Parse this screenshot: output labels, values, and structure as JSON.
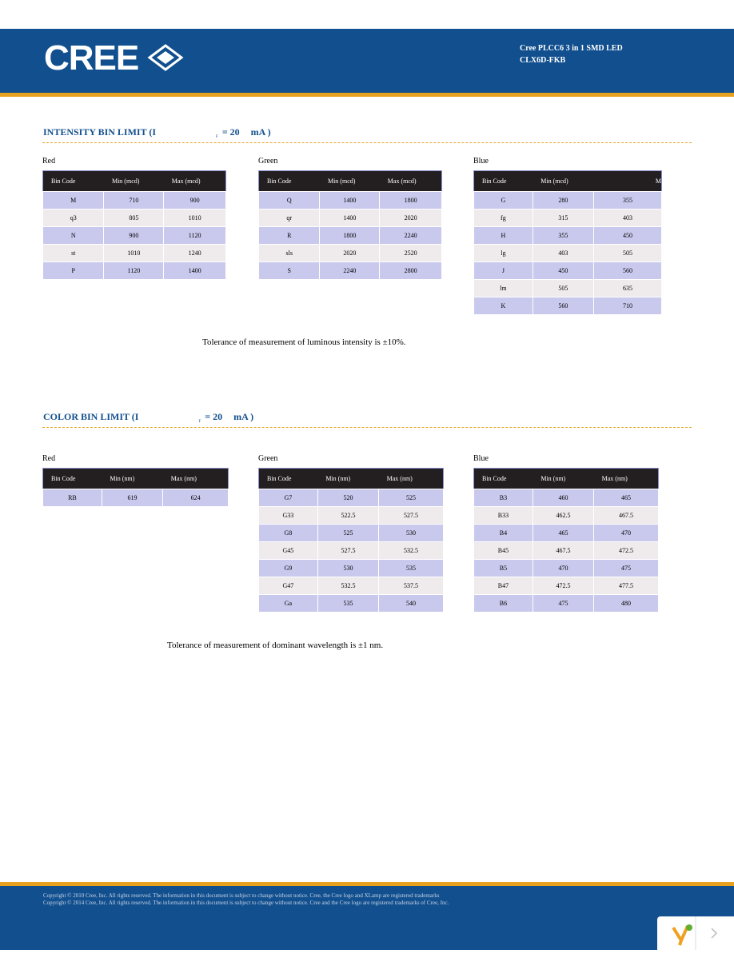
{
  "header": {
    "logo": "CREE",
    "product": "Cree PLCC6 3 in 1 SMD LED",
    "part": "CLX6D-FKB"
  },
  "intensity": {
    "title": "INTENSITY BIN LIMIT (I",
    "sub": "F",
    "cond": "= 20",
    "unit": "mA )",
    "tables": [
      {
        "label": "Red",
        "headers": [
          "Bin Code",
          "Min (mcd)",
          "Max (mcd)"
        ],
        "rows": [
          [
            "M",
            "710",
            "900"
          ],
          [
            "q3",
            "805",
            "1010"
          ],
          [
            "N",
            "900",
            "1120"
          ],
          [
            "st",
            "1010",
            "1240"
          ],
          [
            "P",
            "1120",
            "1400"
          ]
        ]
      },
      {
        "label": "Green",
        "headers": [
          "Bin Code",
          "Min (mcd)",
          "Max (mcd)"
        ],
        "rows": [
          [
            "Q",
            "1400",
            "1800"
          ],
          [
            "qr",
            "1400",
            "2020"
          ],
          [
            "R",
            "1800",
            "2240"
          ],
          [
            "sls",
            "2020",
            "2520"
          ],
          [
            "S",
            "2240",
            "2800"
          ]
        ]
      },
      {
        "label": "Blue",
        "headers": [
          "Bin Code",
          "Min (mcd)",
          "M"
        ],
        "rows": [
          [
            "G",
            "280",
            "355"
          ],
          [
            "fg",
            "315",
            "403"
          ],
          [
            "H",
            "355",
            "450"
          ],
          [
            "lg",
            "403",
            "505"
          ],
          [
            "J",
            "450",
            "560"
          ],
          [
            "lm",
            "505",
            "635"
          ],
          [
            "K",
            "560",
            "710"
          ]
        ]
      }
    ],
    "note": "Tolerance of measurement of luminous intensity is ±10%."
  },
  "color": {
    "title": "COLOR BIN LIMIT (I",
    "sub": "F",
    "cond": "= 20",
    "unit": "mA )",
    "tables": [
      {
        "label": "Red",
        "headers": [
          "Bin Code",
          "Min (nm)",
          "Max (nm)"
        ],
        "rows": [
          [
            "RB",
            "619",
            "624"
          ]
        ]
      },
      {
        "label": "Green",
        "headers": [
          "Bin Code",
          "Min (nm)",
          "Max (nm)"
        ],
        "rows": [
          [
            "G7",
            "520",
            "525"
          ],
          [
            "G33",
            "522.5",
            "527.5"
          ],
          [
            "G8",
            "525",
            "530"
          ],
          [
            "G45",
            "527.5",
            "532.5"
          ],
          [
            "G9",
            "530",
            "535"
          ],
          [
            "G47",
            "532.5",
            "537.5"
          ],
          [
            "Ga",
            "535",
            "540"
          ]
        ]
      },
      {
        "label": "Blue",
        "headers": [
          "Bin Code",
          "Min (nm)",
          "Max (nm)"
        ],
        "rows": [
          [
            "B3",
            "460",
            "465"
          ],
          [
            "B33",
            "462.5",
            "467.5"
          ],
          [
            "B4",
            "465",
            "470"
          ],
          [
            "B45",
            "467.5",
            "472.5"
          ],
          [
            "B5",
            "470",
            "475"
          ],
          [
            "B47",
            "472.5",
            "477.5"
          ],
          [
            "B6",
            "475",
            "480"
          ]
        ]
      }
    ],
    "note": "Tolerance of measurement of dominant wavelength is ±1 nm."
  },
  "footer": {
    "line1": "Copyright © 2010 Cree, Inc. All rights reserved. The information in this document is subject to change without notice. Cree, the Cree logo and XLamp are registered trademarks",
    "line2": "Copyright © 2014 Cree, Inc. All rights reserved. The information in this document is subject to change without notice. Cree and the Cree logo are registered trademarks of Cree, Inc."
  }
}
